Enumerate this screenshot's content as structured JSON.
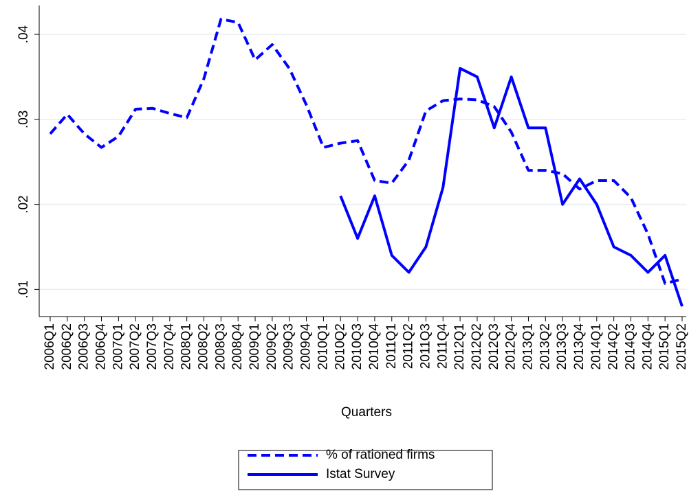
{
  "chart_data": {
    "type": "line",
    "x_label": "Quarters",
    "categories": [
      "2006Q1",
      "2006Q2",
      "2006Q3",
      "2006Q4",
      "2007Q1",
      "2007Q2",
      "2007Q3",
      "2007Q4",
      "2008Q1",
      "2008Q2",
      "2008Q3",
      "2008Q4",
      "2009Q1",
      "2009Q2",
      "2009Q3",
      "2009Q4",
      "2010Q1",
      "2010Q2",
      "2010Q3",
      "2010Q4",
      "2011Q1",
      "2011Q2",
      "2011Q3",
      "2011Q4",
      "2012Q1",
      "2012Q2",
      "2012Q3",
      "2012Q4",
      "2013Q1",
      "2013Q2",
      "2013Q3",
      "2013Q4",
      "2014Q1",
      "2014Q2",
      "2014Q3",
      "2014Q4",
      "2015Q1",
      "2015Q2"
    ],
    "series": [
      {
        "name": "% of rationed firms",
        "color": "#0000ff",
        "dashed": true,
        "values": [
          0.0283,
          0.0306,
          0.0283,
          0.0267,
          0.028,
          0.0312,
          0.0313,
          0.0307,
          0.0302,
          0.0348,
          0.0418,
          0.0414,
          0.037,
          0.0388,
          0.036,
          0.0317,
          0.0267,
          0.0272,
          0.0275,
          0.0228,
          0.0225,
          0.0252,
          0.031,
          0.0322,
          0.0324,
          0.0323,
          0.0315,
          0.0285,
          0.024,
          0.024,
          0.0236,
          0.0218,
          0.0228,
          0.0228,
          0.0208,
          0.0165,
          0.0107,
          0.0112
        ]
      },
      {
        "name": "Istat Survey",
        "color": "#0000ff",
        "dashed": false,
        "values": [
          null,
          null,
          null,
          null,
          null,
          null,
          null,
          null,
          null,
          null,
          null,
          null,
          null,
          null,
          null,
          null,
          null,
          0.021,
          0.016,
          0.021,
          0.014,
          0.012,
          0.015,
          0.022,
          0.036,
          0.035,
          0.029,
          0.035,
          0.029,
          0.029,
          0.02,
          0.023,
          0.02,
          0.015,
          0.014,
          0.012,
          0.014,
          0.008
        ]
      }
    ],
    "ylim": [
      0.0068,
      0.0434
    ],
    "yticks": [
      {
        "value": 0.01,
        "label": ".01"
      },
      {
        "value": 0.02,
        "label": ".02"
      },
      {
        "value": 0.03,
        "label": ".03"
      },
      {
        "value": 0.04,
        "label": ".04"
      }
    ],
    "grid": true,
    "legend": "bottom"
  }
}
